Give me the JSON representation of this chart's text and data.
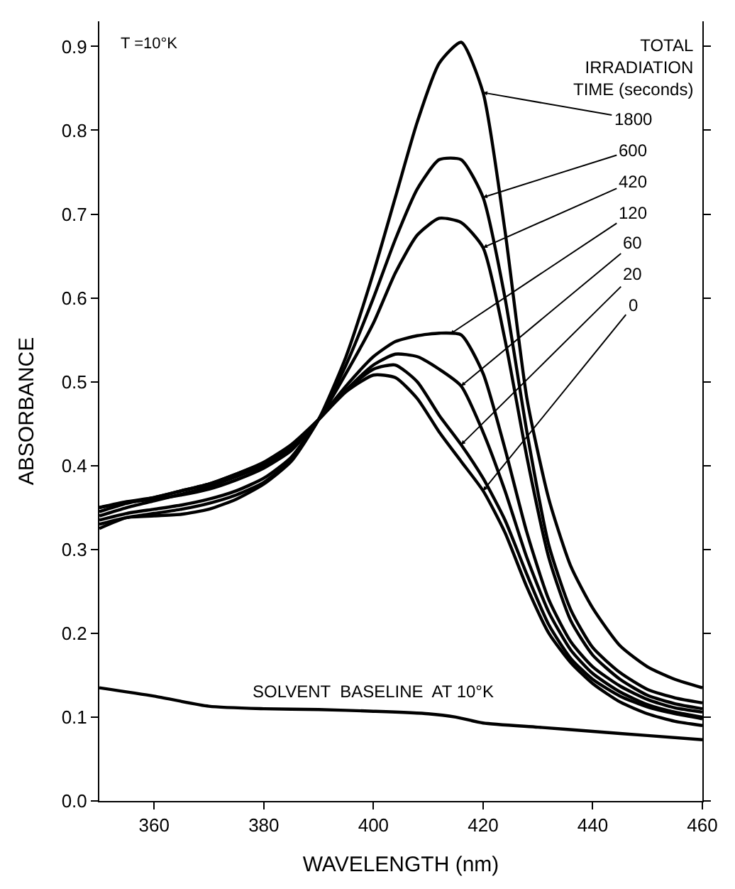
{
  "chart_data": {
    "type": "line",
    "xlabel": "WAVELENGTH (nm)",
    "ylabel": "ABSORBANCE",
    "legend_title": "TOTAL IRRADIATION TIME (seconds)",
    "x": [
      350,
      355,
      360,
      365,
      370,
      375,
      380,
      385,
      390,
      395,
      400,
      404,
      408,
      412,
      416,
      420,
      424,
      428,
      432,
      436,
      440,
      445,
      450,
      455,
      460
    ],
    "series": [
      {
        "color": "#000000",
        "values": [
          0.345,
          0.355,
          0.362,
          0.37,
          0.378,
          0.39,
          0.404,
          0.425,
          0.455,
          0.488,
          0.508,
          0.505,
          0.48,
          0.44,
          0.405,
          0.37,
          0.32,
          0.255,
          0.2,
          0.165,
          0.14,
          0.118,
          0.104,
          0.095,
          0.09
        ]
      },
      {
        "color": "#000000",
        "values": [
          0.35,
          0.357,
          0.362,
          0.37,
          0.378,
          0.39,
          0.403,
          0.423,
          0.455,
          0.49,
          0.515,
          0.52,
          0.5,
          0.46,
          0.425,
          0.385,
          0.335,
          0.27,
          0.21,
          0.17,
          0.145,
          0.125,
          0.112,
          0.104,
          0.098
        ]
      },
      {
        "color": "#000000",
        "values": [
          0.34,
          0.35,
          0.358,
          0.366,
          0.375,
          0.387,
          0.4,
          0.42,
          0.455,
          0.49,
          0.52,
          0.533,
          0.53,
          0.515,
          0.495,
          0.44,
          0.37,
          0.29,
          0.225,
          0.18,
          0.152,
          0.13,
          0.115,
          0.106,
          0.1
        ]
      },
      {
        "color": "#000000",
        "values": [
          0.35,
          0.356,
          0.36,
          0.365,
          0.372,
          0.383,
          0.397,
          0.418,
          0.455,
          0.495,
          0.53,
          0.548,
          0.555,
          0.558,
          0.556,
          0.51,
          0.42,
          0.32,
          0.24,
          0.19,
          0.16,
          0.137,
          0.121,
          0.111,
          0.106
        ]
      },
      {
        "color": "#000000",
        "values": [
          0.335,
          0.343,
          0.348,
          0.353,
          0.36,
          0.37,
          0.385,
          0.41,
          0.455,
          0.51,
          0.57,
          0.63,
          0.675,
          0.695,
          0.69,
          0.66,
          0.55,
          0.41,
          0.29,
          0.215,
          0.174,
          0.145,
          0.126,
          0.116,
          0.11
        ]
      },
      {
        "color": "#000000",
        "values": [
          0.33,
          0.338,
          0.343,
          0.348,
          0.355,
          0.365,
          0.38,
          0.407,
          0.455,
          0.52,
          0.6,
          0.67,
          0.73,
          0.765,
          0.765,
          0.72,
          0.6,
          0.44,
          0.305,
          0.228,
          0.183,
          0.153,
          0.133,
          0.123,
          0.117
        ]
      },
      {
        "color": "#000000",
        "values": [
          0.325,
          0.338,
          0.34,
          0.342,
          0.348,
          0.36,
          0.378,
          0.405,
          0.455,
          0.53,
          0.63,
          0.72,
          0.81,
          0.88,
          0.905,
          0.845,
          0.68,
          0.48,
          0.36,
          0.28,
          0.23,
          0.185,
          0.16,
          0.145,
          0.135
        ]
      },
      {
        "color": "#000000",
        "x": [
          350,
          360,
          370,
          380,
          390,
          400,
          410,
          415,
          420,
          430,
          440,
          450,
          460
        ],
        "values": [
          0.135,
          0.125,
          0.113,
          0.11,
          0.109,
          0.107,
          0.104,
          0.1,
          0.093,
          0.088,
          0.083,
          0.078,
          0.073
        ]
      }
    ],
    "annotations": [
      {
        "text": "1800",
        "x": 420,
        "y": 0.845
      },
      {
        "text": "600",
        "x": 420,
        "y": 0.72
      },
      {
        "text": "420",
        "x": 420,
        "y": 0.66
      },
      {
        "text": "120",
        "x": 414,
        "y": 0.557
      },
      {
        "text": "60",
        "x": 416,
        "y": 0.495
      },
      {
        "text": "20",
        "x": 416,
        "y": 0.425
      },
      {
        "text": "0",
        "x": 420,
        "y": 0.37
      },
      "T =10°K",
      {
        "text": "SOLVENT  BASELINE  AT 10°K",
        "x": 400,
        "y": 0.107
      }
    ],
    "xlim": [
      350,
      460
    ],
    "xticks": [
      360,
      380,
      400,
      420,
      440,
      460
    ],
    "ylim": [
      0,
      0.93
    ],
    "yticks": [
      {
        "value": 0,
        "label": "0.0"
      },
      0.1,
      0.2,
      0.3,
      0.4,
      0.5,
      0.6,
      0.7,
      0.8,
      0.9
    ]
  }
}
